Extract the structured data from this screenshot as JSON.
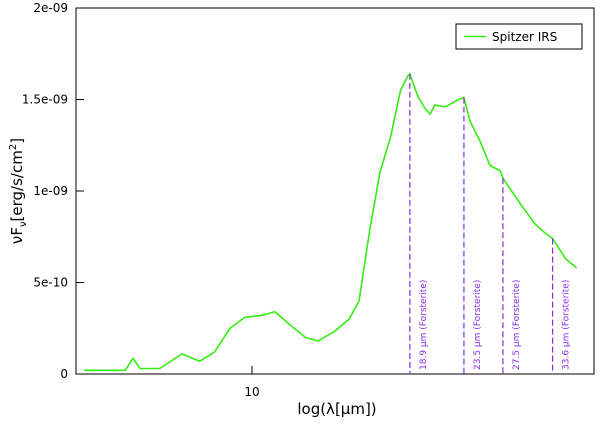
{
  "chart_data": {
    "type": "line",
    "xlabel": "log(λ[μm])",
    "ylabel": [
      "νF",
      "ν",
      "[erg/s/cm",
      "2",
      "]"
    ],
    "x": [
      5.08,
      6.0,
      6.19,
      6.37,
      6.9,
      7.54,
      8.1,
      8.6,
      9.15,
      9.72,
      10.4,
      10.97,
      11.65,
      12.4,
      13.05,
      13.9,
      14.8,
      15.4,
      16.1,
      16.75,
      17.5,
      18.2,
      18.75,
      18.9,
      19.5,
      20.1,
      20.5,
      20.9,
      21.8,
      23.0,
      23.5,
      24.1,
      25.1,
      26.1,
      27.2,
      27.5,
      29.5,
      31.3,
      32.6,
      33.6,
      35.4,
      37.0
    ],
    "series": [
      {
        "name": "Spitzer IRS",
        "color": "#33ee11",
        "values": [
          2e-11,
          2e-11,
          8.5e-11,
          3e-11,
          3e-11,
          1.1e-10,
          7e-11,
          1.2e-10,
          2.5e-10,
          3.1e-10,
          3.2e-10,
          3.4e-10,
          2.7e-10,
          2e-10,
          1.8e-10,
          2.3e-10,
          3e-10,
          4e-10,
          8e-10,
          1.1e-09,
          1.3e-09,
          1.55e-09,
          1.63e-09,
          1.64e-09,
          1.52e-09,
          1.45e-09,
          1.42e-09,
          1.47e-09,
          1.46e-09,
          1.5e-09,
          1.51e-09,
          1.38e-09,
          1.27e-09,
          1.14e-09,
          1.11e-09,
          1.07e-09,
          9.3e-10,
          8.2e-10,
          7.7e-10,
          7.4e-10,
          6.3e-10,
          5.8e-10
        ]
      }
    ],
    "xlim": [
      4.92,
      39.7
    ],
    "xscale": "log",
    "xticks": [
      10
    ],
    "ylim": [
      0,
      2e-09
    ],
    "yticks": [
      0,
      5e-10,
      {
        "value": 1e-09,
        "label": "1e-09"
      },
      {
        "value": 1.5e-09,
        "label": "1.5e-09"
      },
      {
        "value": 2e-09,
        "label": "2e-09"
      }
    ],
    "legend": "upper right",
    "annotations": [
      {
        "x": 18.9,
        "y": 1.64e-09,
        "text": "18.9 μm (Forsterite)"
      },
      {
        "x": 23.5,
        "y": 1.51e-09,
        "text": "23.5 μm (Forsterite)"
      },
      {
        "x": 27.5,
        "y": 1.07e-09,
        "text": "27.5 μm (Forsterite)"
      },
      {
        "x": 33.6,
        "y": 7.4e-10,
        "text": "33.6 μm (Forsterite)"
      }
    ],
    "annotation_color": "#8a2be2"
  }
}
